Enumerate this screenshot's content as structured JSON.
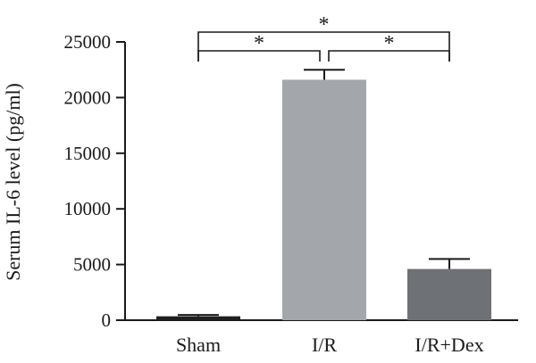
{
  "chart_data": {
    "type": "bar",
    "title": "",
    "xlabel": "",
    "ylabel": "Serum IL-6 level (pg/ml)",
    "ylim": [
      0,
      25000
    ],
    "yticks": [
      0,
      5000,
      10000,
      15000,
      20000,
      25000
    ],
    "ytick_labels": [
      "0",
      "5000",
      "10000",
      "15000",
      "20000",
      "25000"
    ],
    "categories": [
      "Sham",
      "I/R",
      "I/R+Dex"
    ],
    "values": [
      350,
      21600,
      4600
    ],
    "errors": [
      120,
      900,
      900
    ],
    "bar_colors": [
      "#1f1f1f",
      "#a3a6ab",
      "#6e7175"
    ],
    "grid": false,
    "significance": [
      {
        "from": "Sham",
        "to": "I/R",
        "label": "*"
      },
      {
        "from": "I/R",
        "to": "I/R+Dex",
        "label": "*"
      },
      {
        "from": "Sham",
        "to": "I/R+Dex",
        "label": "*"
      }
    ]
  }
}
